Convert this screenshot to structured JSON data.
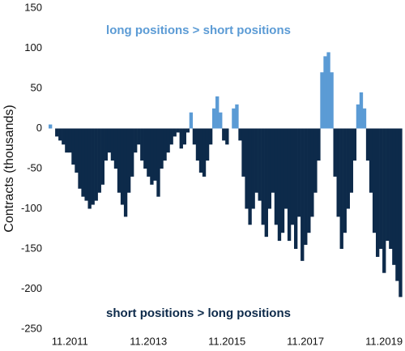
{
  "chart_data": {
    "type": "bar",
    "y_label": "Contracts (thousands)",
    "annotations": [
      "long positions > short positions",
      "short positions > long positions"
    ],
    "positive_color": "#5b9bd5",
    "negative_color": "#0d2a4a",
    "ylim": [
      -250,
      150
    ],
    "yticks": [
      -250,
      -200,
      -150,
      -100,
      -50,
      0,
      50,
      100,
      150
    ],
    "grid": false,
    "xticks": [
      "11.2011",
      "11.2013",
      "11.2015",
      "11.2017",
      "11.2019"
    ],
    "x": [
      "05.2011",
      "06.2011",
      "07.2011",
      "08.2011",
      "09.2011",
      "10.2011",
      "11.2011",
      "12.2011",
      "01.2012",
      "02.2012",
      "03.2012",
      "04.2012",
      "05.2012",
      "06.2012",
      "07.2012",
      "08.2012",
      "09.2012",
      "10.2012",
      "11.2012",
      "12.2012",
      "01.2013",
      "02.2013",
      "03.2013",
      "04.2013",
      "05.2013",
      "06.2013",
      "07.2013",
      "08.2013",
      "09.2013",
      "10.2013",
      "11.2013",
      "12.2013",
      "01.2014",
      "02.2014",
      "03.2014",
      "04.2014",
      "05.2014",
      "06.2014",
      "07.2014",
      "08.2014",
      "09.2014",
      "10.2014",
      "11.2014",
      "12.2014",
      "01.2015",
      "02.2015",
      "03.2015",
      "04.2015",
      "05.2015",
      "06.2015",
      "07.2015",
      "08.2015",
      "09.2015",
      "10.2015",
      "11.2015",
      "12.2015",
      "01.2016",
      "02.2016",
      "03.2016",
      "04.2016",
      "05.2016",
      "06.2016",
      "07.2016",
      "08.2016",
      "09.2016",
      "10.2016",
      "11.2016",
      "12.2016",
      "01.2017",
      "02.2017",
      "03.2017",
      "04.2017",
      "05.2017",
      "06.2017",
      "07.2017",
      "08.2017",
      "09.2017",
      "10.2017",
      "11.2017",
      "12.2017",
      "01.2018",
      "02.2018",
      "03.2018",
      "04.2018",
      "05.2018",
      "06.2018",
      "07.2018",
      "08.2018",
      "09.2018",
      "10.2018",
      "11.2018",
      "12.2018",
      "01.2019",
      "02.2019",
      "03.2019",
      "04.2019",
      "05.2019",
      "06.2019",
      "07.2019",
      "08.2019",
      "09.2019",
      "10.2019",
      "11.2019",
      "12.2019",
      "01.2020",
      "02.2020",
      "03.2020",
      "04.2020"
    ],
    "values": [
      5,
      0,
      -10,
      -15,
      -20,
      -30,
      -30,
      -45,
      -55,
      -75,
      -85,
      -90,
      -100,
      -95,
      -90,
      -80,
      -70,
      -40,
      -30,
      -40,
      -50,
      -80,
      -95,
      -110,
      -80,
      -60,
      -30,
      -20,
      -40,
      -50,
      -60,
      -70,
      -65,
      -85,
      -50,
      -40,
      -30,
      -20,
      -10,
      -5,
      -25,
      -20,
      -5,
      20,
      -20,
      -40,
      -55,
      -60,
      -40,
      -20,
      25,
      40,
      20,
      -15,
      -20,
      0,
      25,
      30,
      -15,
      -60,
      -100,
      -120,
      -100,
      -80,
      -90,
      -120,
      -135,
      -100,
      -80,
      -120,
      -140,
      -130,
      -100,
      -140,
      -120,
      -150,
      -110,
      -165,
      -145,
      -130,
      -110,
      -80,
      -40,
      70,
      90,
      95,
      70,
      -60,
      -110,
      -150,
      -130,
      -100,
      -80,
      -40,
      30,
      45,
      25,
      -40,
      -80,
      -130,
      -160,
      -150,
      -180,
      -140,
      -150,
      -170,
      -190,
      -210
    ]
  }
}
